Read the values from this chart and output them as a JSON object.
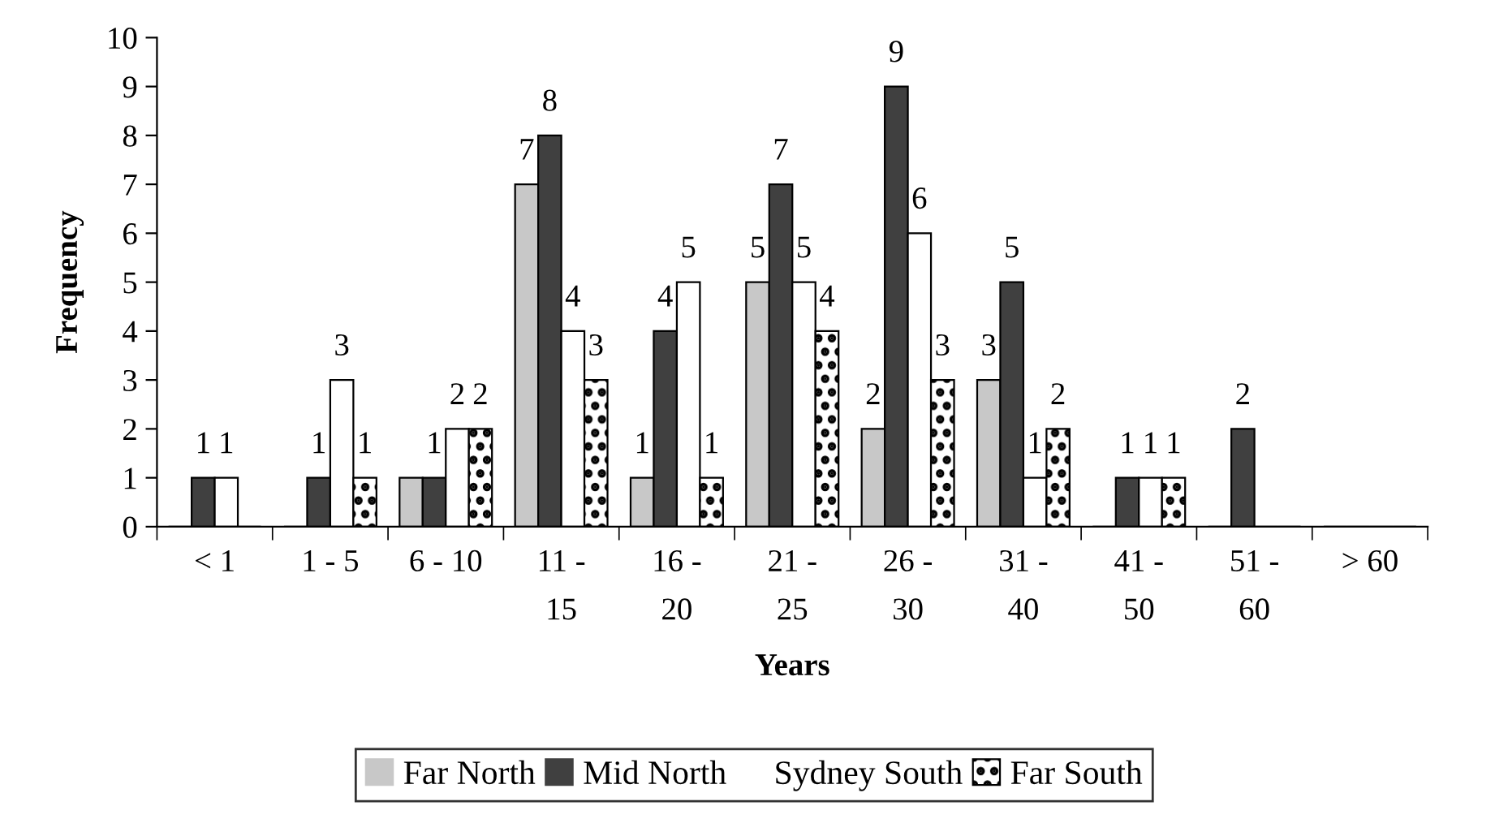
{
  "chart_data": {
    "type": "bar",
    "xlabel": "Years",
    "ylabel": "Frequency",
    "categories": [
      "< 1",
      "1 - 5",
      "6 - 10",
      "11 -\n15",
      "16 -\n20",
      "21 -\n25",
      "26 -\n30",
      "31 -\n40",
      "41 -\n50",
      "51 -\n60",
      "> 60"
    ],
    "series": [
      {
        "name": "Far North",
        "color": "#c8c8c8",
        "values": [
          0,
          0,
          1,
          7,
          1,
          5,
          2,
          3,
          0,
          0,
          0
        ],
        "value_labels": [
          null,
          null,
          null,
          "7",
          "1",
          "5",
          "2",
          "3",
          null,
          null,
          null
        ]
      },
      {
        "name": "Mid North",
        "color": "#404040",
        "values": [
          1,
          1,
          1,
          8,
          4,
          7,
          9,
          5,
          1,
          2,
          0
        ],
        "value_labels": [
          "1",
          "1",
          "1",
          "8",
          "4",
          "7",
          "9",
          "5",
          "1",
          "2",
          null
        ]
      },
      {
        "name": "Sydney South",
        "color": "#ffffff",
        "values": [
          1,
          3,
          2,
          4,
          5,
          5,
          6,
          1,
          1,
          0,
          0
        ],
        "value_labels": [
          "1",
          "3",
          "2",
          "4",
          "5",
          "5",
          "6",
          "1",
          "1",
          null,
          null
        ]
      },
      {
        "name": "Far South",
        "color": "#000000",
        "values": [
          0,
          1,
          2,
          3,
          1,
          4,
          3,
          2,
          1,
          0,
          0
        ],
        "value_labels": [
          null,
          "1",
          "2",
          "3",
          "1",
          "4",
          "3",
          "2",
          "1",
          null,
          null
        ]
      }
    ],
    "ylim": [
      0,
      10
    ],
    "yticks": [
      0,
      1,
      2,
      3,
      4,
      5,
      6,
      7,
      8,
      9,
      10
    ],
    "grid": false,
    "legend": "bottom"
  }
}
